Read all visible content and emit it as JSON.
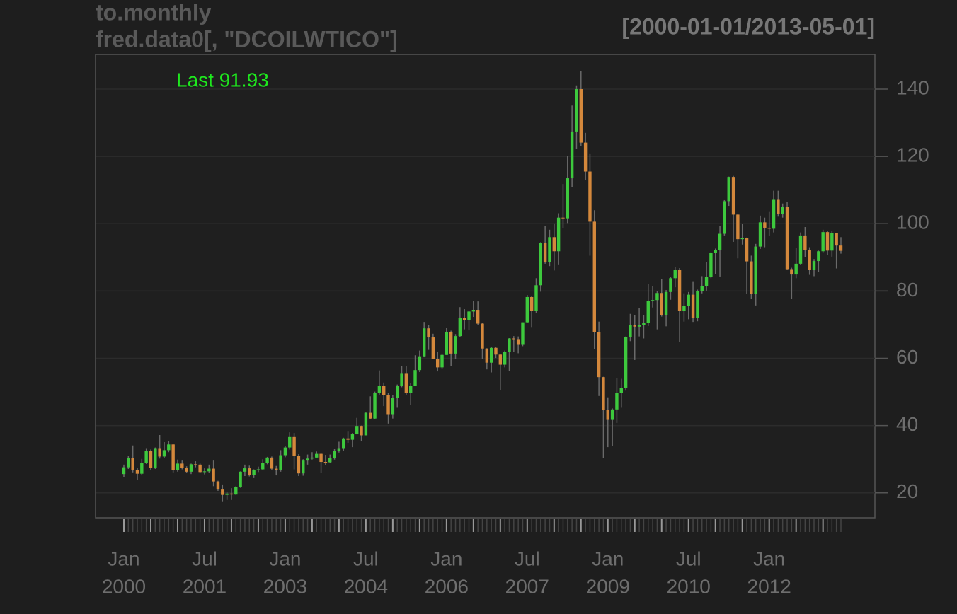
{
  "chart_data": {
    "type": "candlestick",
    "title": "to.monthly",
    "subtitle": "fred.data0[, \"DCOILWTICO\"]",
    "range_label": "[2000-01-01/2013-05-01]",
    "last_label": "Last 91.93",
    "up_color": "#3dc93d",
    "down_color": "#d4883c",
    "wick_color": "#6a6a6a",
    "grid": true,
    "ylim": [
      12.6,
      150.3
    ],
    "yticks": [
      20,
      40,
      60,
      80,
      100,
      120,
      140
    ],
    "xtick_labels": [
      {
        "at": "2000-01",
        "month": "Jan",
        "year": "2000"
      },
      {
        "at": "2001-07",
        "month": "Jul",
        "year": "2001"
      },
      {
        "at": "2003-01",
        "month": "Jan",
        "year": "2003"
      },
      {
        "at": "2004-07",
        "month": "Jul",
        "year": "2004"
      },
      {
        "at": "2006-01",
        "month": "Jan",
        "year": "2006"
      },
      {
        "at": "2007-07",
        "month": "Jul",
        "year": "2007"
      },
      {
        "at": "2009-01",
        "month": "Jan",
        "year": "2009"
      },
      {
        "at": "2010-07",
        "month": "Jul",
        "year": "2010"
      },
      {
        "at": "2012-01",
        "month": "Jan",
        "year": "2012"
      }
    ],
    "x": [
      "2000-01",
      "2000-02",
      "2000-03",
      "2000-04",
      "2000-05",
      "2000-06",
      "2000-07",
      "2000-08",
      "2000-09",
      "2000-10",
      "2000-11",
      "2000-12",
      "2001-01",
      "2001-02",
      "2001-03",
      "2001-04",
      "2001-05",
      "2001-06",
      "2001-07",
      "2001-08",
      "2001-09",
      "2001-10",
      "2001-11",
      "2001-12",
      "2002-01",
      "2002-02",
      "2002-03",
      "2002-04",
      "2002-05",
      "2002-06",
      "2002-07",
      "2002-08",
      "2002-09",
      "2002-10",
      "2002-11",
      "2002-12",
      "2003-01",
      "2003-02",
      "2003-03",
      "2003-04",
      "2003-05",
      "2003-06",
      "2003-07",
      "2003-08",
      "2003-09",
      "2003-10",
      "2003-11",
      "2003-12",
      "2004-01",
      "2004-02",
      "2004-03",
      "2004-04",
      "2004-05",
      "2004-06",
      "2004-07",
      "2004-08",
      "2004-09",
      "2004-10",
      "2004-11",
      "2004-12",
      "2005-01",
      "2005-02",
      "2005-03",
      "2005-04",
      "2005-05",
      "2005-06",
      "2005-07",
      "2005-08",
      "2005-09",
      "2005-10",
      "2005-11",
      "2005-12",
      "2006-01",
      "2006-02",
      "2006-03",
      "2006-04",
      "2006-05",
      "2006-06",
      "2006-07",
      "2006-08",
      "2006-09",
      "2006-10",
      "2006-11",
      "2006-12",
      "2007-01",
      "2007-02",
      "2007-03",
      "2007-04",
      "2007-05",
      "2007-06",
      "2007-07",
      "2007-08",
      "2007-09",
      "2007-10",
      "2007-11",
      "2007-12",
      "2008-01",
      "2008-02",
      "2008-03",
      "2008-04",
      "2008-05",
      "2008-06",
      "2008-07",
      "2008-08",
      "2008-09",
      "2008-10",
      "2008-11",
      "2008-12",
      "2009-01",
      "2009-02",
      "2009-03",
      "2009-04",
      "2009-05",
      "2009-06",
      "2009-07",
      "2009-08",
      "2009-09",
      "2009-10",
      "2009-11",
      "2009-12",
      "2010-01",
      "2010-02",
      "2010-03",
      "2010-04",
      "2010-05",
      "2010-06",
      "2010-07",
      "2010-08",
      "2010-09",
      "2010-10",
      "2010-11",
      "2010-12",
      "2011-01",
      "2011-02",
      "2011-03",
      "2011-04",
      "2011-05",
      "2011-06",
      "2011-07",
      "2011-08",
      "2011-09",
      "2011-10",
      "2011-11",
      "2011-12",
      "2012-01",
      "2012-02",
      "2012-03",
      "2012-04",
      "2012-05",
      "2012-06",
      "2012-07",
      "2012-08",
      "2012-09",
      "2012-10",
      "2012-11",
      "2012-12",
      "2013-01",
      "2013-02",
      "2013-03",
      "2013-04",
      "2013-05"
    ],
    "open": [
      25.6,
      27.6,
      30.4,
      26.9,
      25.7,
      29.0,
      32.5,
      27.4,
      33.1,
      30.8,
      32.7,
      34.4,
      26.8,
      28.7,
      27.4,
      26.3,
      28.5,
      28.4,
      26.2,
      26.4,
      27.2,
      23.4,
      21.2,
      19.4,
      19.8,
      19.5,
      21.7,
      26.3,
      27.3,
      25.3,
      26.9,
      27.0,
      28.9,
      30.5,
      27.2,
      26.9,
      31.2,
      33.5,
      36.6,
      31.0,
      25.8,
      29.6,
      30.2,
      30.5,
      31.6,
      29.2,
      29.1,
      30.4,
      32.5,
      33.1,
      36.2,
      35.8,
      37.4,
      39.9,
      37.1,
      43.8,
      42.1,
      49.6,
      51.8,
      49.1,
      43.4,
      48.2,
      51.8,
      55.4,
      49.7,
      51.9,
      56.5,
      60.6,
      68.9,
      66.2,
      59.8,
      57.3,
      61.0,
      67.9,
      61.4,
      66.6,
      71.9,
      71.3,
      73.9,
      74.4,
      70.3,
      62.9,
      58.7,
      63.1,
      61.1,
      58.1,
      61.8,
      65.9,
      65.7,
      64.0,
      70.7,
      78.2,
      74.0,
      81.7,
      94.2,
      88.7,
      96.0,
      91.8,
      101.8,
      101.6,
      113.5,
      127.4,
      140.0,
      124.1,
      115.5,
      100.6,
      67.8,
      54.4,
      44.6,
      41.7,
      44.8,
      49.7,
      51.1,
      66.3,
      69.9,
      69.4,
      69.9,
      70.6,
      77.0,
      77.3,
      79.4,
      72.9,
      79.7,
      83.8,
      86.2,
      74.0,
      75.6,
      78.9,
      71.9,
      79.9,
      81.4,
      84.1,
      91.4,
      92.2,
      97.0,
      106.7,
      113.9,
      102.7,
      95.4,
      95.7,
      88.8,
      79.2,
      93.2,
      100.4,
      98.8,
      98.5,
      107.1,
      103.0,
      104.9,
      86.5,
      84.9,
      88.1,
      96.5,
      92.2,
      86.2,
      88.9,
      91.8,
      97.5,
      92.0,
      97.2,
      93.5
    ],
    "high": [
      28.4,
      30.9,
      34.1,
      27.4,
      30.1,
      33.1,
      32.9,
      33.5,
      37.2,
      35.1,
      35.3,
      34.6,
      29.9,
      29.6,
      27.9,
      28.7,
      29.4,
      28.7,
      27.3,
      28.4,
      29.6,
      23.6,
      22.5,
      20.4,
      21.4,
      22.0,
      26.4,
      28.4,
      28.1,
      27.0,
      27.8,
      30.0,
      30.7,
      30.8,
      28.0,
      32.7,
      34.0,
      38.0,
      37.8,
      31.5,
      30.0,
      31.4,
      32.1,
      32.3,
      31.7,
      31.3,
      31.4,
      33.0,
      35.2,
      36.4,
      38.2,
      37.8,
      42.3,
      40.0,
      43.9,
      48.7,
      50.1,
      56.4,
      52.8,
      49.8,
      49.1,
      52.2,
      57.7,
      57.6,
      52.6,
      60.9,
      62.3,
      70.8,
      69.8,
      67.3,
      62.0,
      61.4,
      69.1,
      68.2,
      67.2,
      75.2,
      74.6,
      74.2,
      77.0,
      76.9,
      70.5,
      63.0,
      63.4,
      63.4,
      61.2,
      62.3,
      66.0,
      66.6,
      66.5,
      70.7,
      78.8,
      78.4,
      83.8,
      94.5,
      99.3,
      98.2,
      100.1,
      103.1,
      111.8,
      120.1,
      135.1,
      141.1,
      145.3,
      127.0,
      120.9,
      104.0,
      70.9,
      54.5,
      48.4,
      45.1,
      54.2,
      53.9,
      66.5,
      73.2,
      72.8,
      75.0,
      72.9,
      82.0,
      81.4,
      80.0,
      83.5,
      80.3,
      84.2,
      87.2,
      86.8,
      79.3,
      79.7,
      82.9,
      80.4,
      84.4,
      88.7,
      91.5,
      92.6,
      99.4,
      107.0,
      114.0,
      114.2,
      103.0,
      99.9,
      95.9,
      90.5,
      94.0,
      102.4,
      101.8,
      103.7,
      109.8,
      109.8,
      106.0,
      106.4,
      86.9,
      92.9,
      97.4,
      99.0,
      93.0,
      89.5,
      92.0,
      98.2,
      97.9,
      97.9,
      97.3,
      96.0
    ],
    "low": [
      24.7,
      27.1,
      26.1,
      23.9,
      25.2,
      28.6,
      26.9,
      27.1,
      30.2,
      30.4,
      32.1,
      26.1,
      26.3,
      27.0,
      25.9,
      25.6,
      27.6,
      25.9,
      25.5,
      25.9,
      22.0,
      20.6,
      17.5,
      17.9,
      17.9,
      19.4,
      21.5,
      25.0,
      24.9,
      24.4,
      26.2,
      26.7,
      28.5,
      26.9,
      25.2,
      26.3,
      30.6,
      32.9,
      27.0,
      25.0,
      25.1,
      28.4,
      29.9,
      30.5,
      26.0,
      28.2,
      28.9,
      29.9,
      32.0,
      32.5,
      34.9,
      33.6,
      37.4,
      35.3,
      37.1,
      41.9,
      42.0,
      49.2,
      45.8,
      40.6,
      42.1,
      45.3,
      51.4,
      49.2,
      46.2,
      51.8,
      55.9,
      60.3,
      62.5,
      59.7,
      56.1,
      57.0,
      61.0,
      57.6,
      59.9,
      66.4,
      68.6,
      68.3,
      72.3,
      69.9,
      59.9,
      56.7,
      55.8,
      60.1,
      50.5,
      57.3,
      56.3,
      61.9,
      61.5,
      63.6,
      70.5,
      69.3,
      73.5,
      79.8,
      88.1,
      87.4,
      86.1,
      87.9,
      98.7,
      100.2,
      110.9,
      122.3,
      123.1,
      112.9,
      90.5,
      62.7,
      48.8,
      30.3,
      33.6,
      34.0,
      40.8,
      45.3,
      50.4,
      65.1,
      59.5,
      66.5,
      65.9,
      69.6,
      75.1,
      68.6,
      72.4,
      69.5,
      77.4,
      81.1,
      64.8,
      70.9,
      71.6,
      70.8,
      71.0,
      79.3,
      80.1,
      83.8,
      85.1,
      84.3,
      96.5,
      105.3,
      94.6,
      89.7,
      93.8,
      79.2,
      77.6,
      75.7,
      92.5,
      93.0,
      96.4,
      97.4,
      102.1,
      101.8,
      86.3,
      77.7,
      83.8,
      87.7,
      90.0,
      84.8,
      84.4,
      85.6,
      91.5,
      90.6,
      90.2,
      86.7,
      91.1
    ],
    "close": [
      27.6,
      30.4,
      26.9,
      25.7,
      29.0,
      32.5,
      27.4,
      33.1,
      30.8,
      32.7,
      34.4,
      26.8,
      28.7,
      27.4,
      26.3,
      28.5,
      28.4,
      26.2,
      26.4,
      27.2,
      23.4,
      21.2,
      19.4,
      19.8,
      19.5,
      21.7,
      26.3,
      27.3,
      25.3,
      26.9,
      27.0,
      28.9,
      30.5,
      27.2,
      26.9,
      31.2,
      33.5,
      36.6,
      31.0,
      25.8,
      29.6,
      30.2,
      30.5,
      31.6,
      29.2,
      29.1,
      30.4,
      32.5,
      33.1,
      36.2,
      35.8,
      37.4,
      39.9,
      37.1,
      43.8,
      42.1,
      49.6,
      51.8,
      49.1,
      43.4,
      48.2,
      51.8,
      55.4,
      49.7,
      51.9,
      56.5,
      60.6,
      68.9,
      66.2,
      59.8,
      57.3,
      61.0,
      67.9,
      61.4,
      66.6,
      71.9,
      71.3,
      73.9,
      74.4,
      70.3,
      62.9,
      58.7,
      63.1,
      61.1,
      58.1,
      61.8,
      65.9,
      65.7,
      64.0,
      70.7,
      78.2,
      74.0,
      81.7,
      94.2,
      88.7,
      96.0,
      91.8,
      101.8,
      101.6,
      113.5,
      127.4,
      140.0,
      124.1,
      115.5,
      100.6,
      67.8,
      54.4,
      44.6,
      41.7,
      44.8,
      49.7,
      51.1,
      66.3,
      69.9,
      69.4,
      69.9,
      70.6,
      77.0,
      77.3,
      79.4,
      72.9,
      79.7,
      83.8,
      86.2,
      74.0,
      75.6,
      78.9,
      71.9,
      79.9,
      81.4,
      84.1,
      91.4,
      92.2,
      97.0,
      106.7,
      113.9,
      102.7,
      95.4,
      95.7,
      88.8,
      79.2,
      93.2,
      100.4,
      98.8,
      98.5,
      107.1,
      103.0,
      104.9,
      86.5,
      84.9,
      88.1,
      96.5,
      92.2,
      86.2,
      88.9,
      91.8,
      97.5,
      92.0,
      97.2,
      93.5,
      91.93
    ]
  }
}
